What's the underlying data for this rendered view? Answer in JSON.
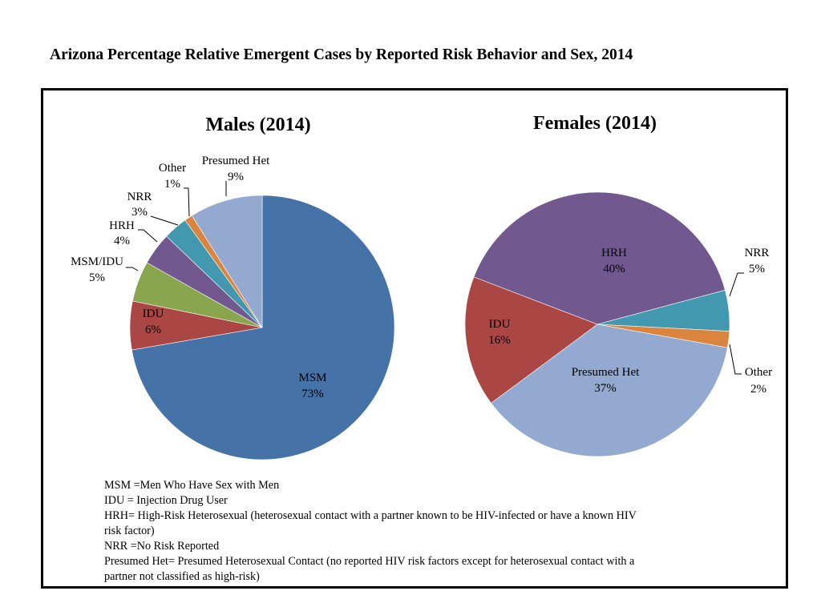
{
  "title": "Arizona Percentage Relative Emergent Cases by Reported Risk Behavior and Sex, 2014",
  "chart_data": [
    {
      "type": "pie",
      "title": "Males (2014)",
      "categories": [
        "MSM",
        "IDU",
        "MSM/IDU",
        "HRH",
        "NRR",
        "Other",
        "Presumed Het"
      ],
      "values": [
        73,
        6,
        5,
        4,
        3,
        1,
        9
      ],
      "value_labels": [
        "73%",
        "6%",
        "5%",
        "4%",
        "3%",
        "1%",
        "9%"
      ],
      "colors": [
        "#4572A7",
        "#AA4643",
        "#89A54E",
        "#71588F",
        "#4198AF",
        "#DB843D",
        "#93A9CF"
      ]
    },
    {
      "type": "pie",
      "title": "Females (2014)",
      "categories": [
        "HRH",
        "NRR",
        "Other",
        "Presumed Het",
        "IDU"
      ],
      "values": [
        40,
        5,
        2,
        37,
        16
      ],
      "value_labels": [
        "40%",
        "5%",
        "2%",
        "37%",
        "16%"
      ],
      "colors": [
        "#71588F",
        "#4198AF",
        "#DB843D",
        "#93A9CF",
        "#AA4643"
      ]
    }
  ],
  "legend_notes": [
    "MSM =Men Who Have Sex with Men",
    "IDU = Injection Drug User",
    "HRH= High-Risk Heterosexual (heterosexual contact with a partner known to be HIV-infected or have a known HIV",
    "risk factor)",
    "NRR =No Risk Reported",
    "Presumed Het= Presumed Heterosexual Contact (no reported HIV risk factors except for heterosexual contact with a",
    "partner not classified as high-risk)"
  ]
}
